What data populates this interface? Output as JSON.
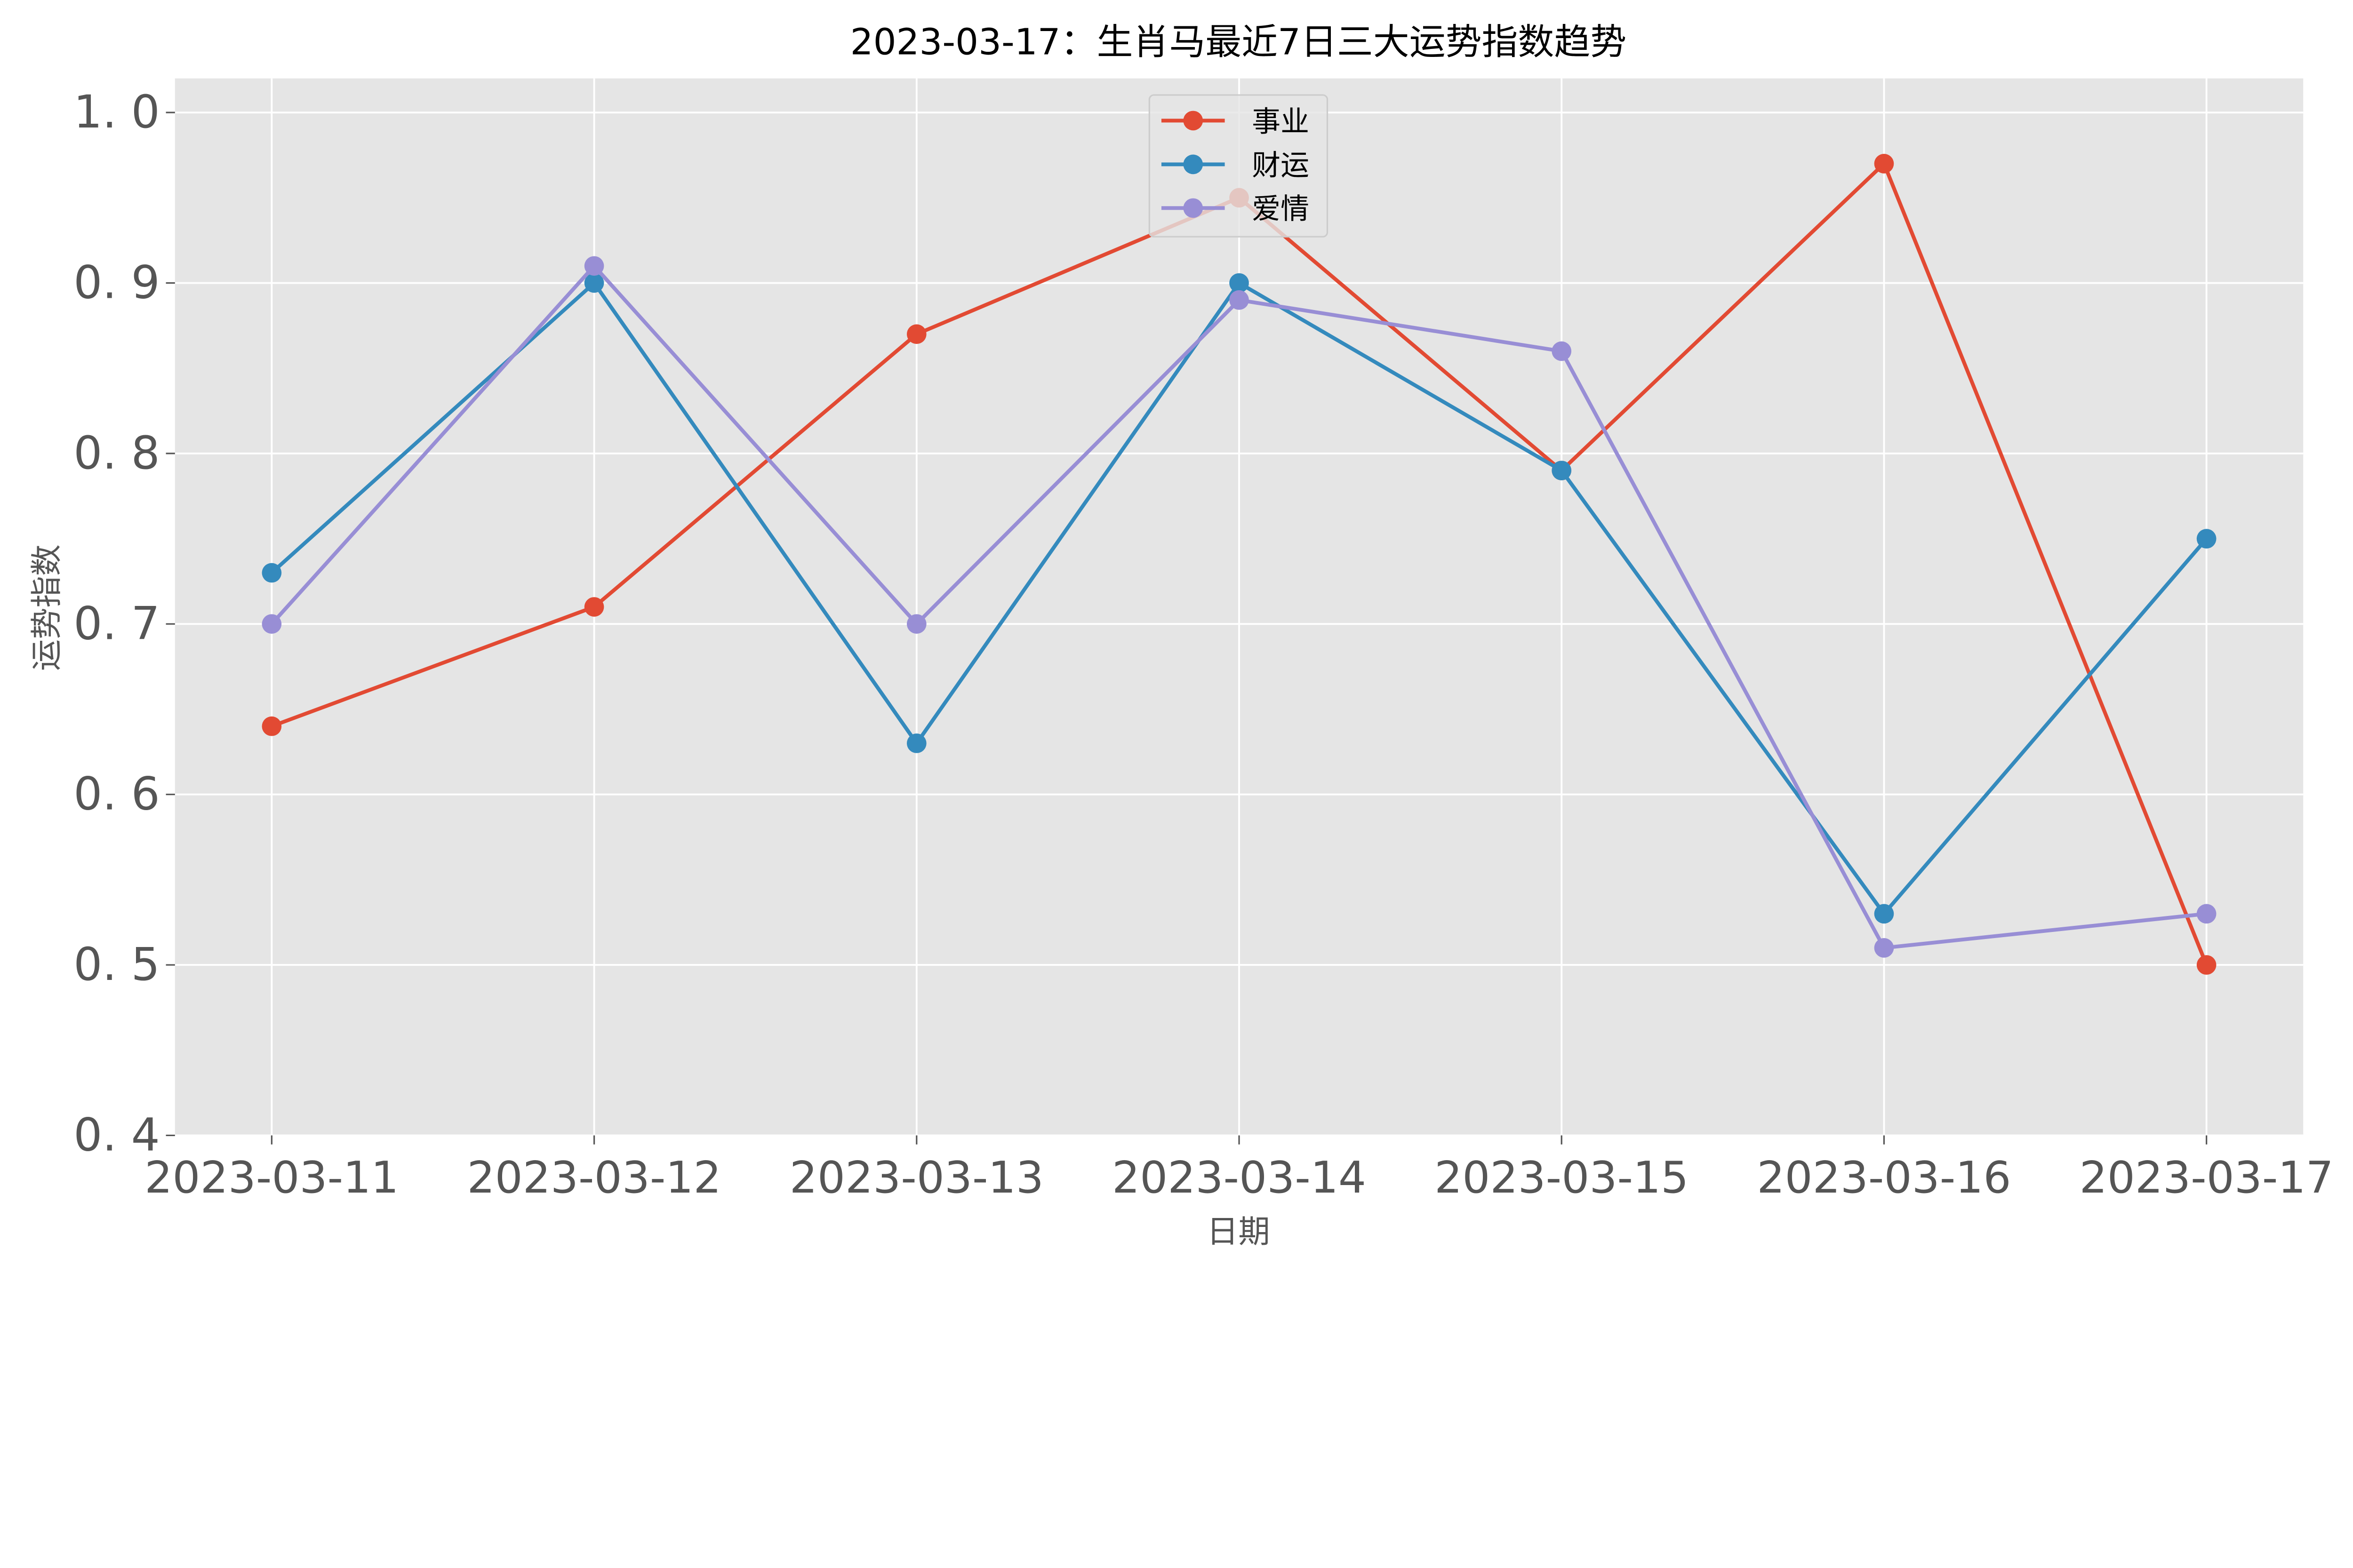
{
  "chart_data": {
    "type": "line",
    "title": "2023-03-17：生肖马最近7日三大运势指数趋势",
    "xlabel": "日期",
    "ylabel": "运势指数",
    "categories": [
      "2023-03-11",
      "2023-03-12",
      "2023-03-13",
      "2023-03-14",
      "2023-03-15",
      "2023-03-16",
      "2023-03-17"
    ],
    "ylim": [
      0.4,
      1.02
    ],
    "yticks": [
      "0.4",
      "0.5",
      "0.6",
      "0.7",
      "0.8",
      "0.9",
      "1.0"
    ],
    "grid": true,
    "legend_position": "top-center",
    "background": "#E5E5E5",
    "series": [
      {
        "name": "事业",
        "color": "#E24A33",
        "marker": "circle",
        "values": [
          0.64,
          0.71,
          0.87,
          0.95,
          0.79,
          0.97,
          0.5
        ]
      },
      {
        "name": "财运",
        "color": "#348ABD",
        "marker": "circle",
        "values": [
          0.73,
          0.9,
          0.63,
          0.9,
          0.79,
          0.53,
          0.75
        ]
      },
      {
        "name": "爱情",
        "color": "#988ED5",
        "marker": "circle",
        "values": [
          0.7,
          0.91,
          0.7,
          0.89,
          0.86,
          0.51,
          0.53
        ]
      }
    ]
  }
}
